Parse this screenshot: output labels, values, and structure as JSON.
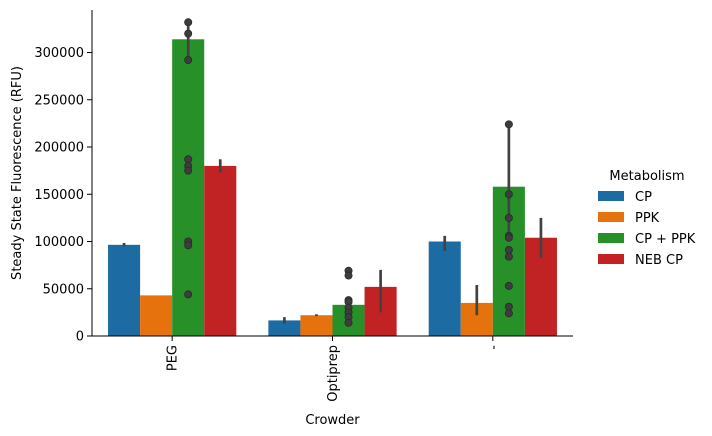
{
  "chart_data": {
    "type": "bar",
    "xlabel": "Crowder",
    "ylabel": "Steady State Fluorescence (RFU)",
    "categories": [
      "PEG",
      "Optiprep",
      "-"
    ],
    "ylim": [
      0,
      345000
    ],
    "yticks": [
      0,
      50000,
      100000,
      150000,
      200000,
      250000,
      300000
    ],
    "grid": false,
    "legend": {
      "title": "Metabolism",
      "placement": "right"
    },
    "series": [
      {
        "name": "CP",
        "color": "#1f77b4",
        "values": [
          96500,
          16500,
          100000
        ],
        "ci": [
          [
            95000,
            98500
          ],
          [
            13000,
            20000
          ],
          [
            90000,
            106000
          ]
        ],
        "points": [
          [],
          [],
          []
        ]
      },
      {
        "name": "PPK",
        "color": "#ff7f0e",
        "values": [
          43000,
          22000,
          35000
        ],
        "ci": [
          [
            43000,
            43000
          ],
          [
            21000,
            23000
          ],
          [
            22000,
            54000
          ]
        ],
        "points": [
          [],
          [],
          []
        ]
      },
      {
        "name": "CP + PPK",
        "color": "#2ca02c",
        "values": [
          314000,
          33000,
          158000
        ],
        "ci": [
          [
            290000,
            328000
          ],
          [
            28000,
            38000
          ],
          [
            103000,
            224000
          ]
        ],
        "points": [
          [
            332000,
            320000,
            292000,
            187000,
            180000,
            175000,
            100000,
            96000,
            44000
          ],
          [
            69000,
            64000,
            38000,
            36000,
            30000,
            25000,
            20000,
            14000
          ],
          [
            224000,
            150000,
            125000,
            106000,
            104000,
            91000,
            84000,
            53000,
            31000,
            24000
          ]
        ]
      },
      {
        "name": "NEB CP",
        "color": "#d62728",
        "values": [
          180000,
          52000,
          104000
        ],
        "ci": [
          [
            173000,
            187000
          ],
          [
            25000,
            70000
          ],
          [
            83000,
            125000
          ]
        ],
        "points": [
          [],
          [],
          []
        ]
      }
    ]
  }
}
